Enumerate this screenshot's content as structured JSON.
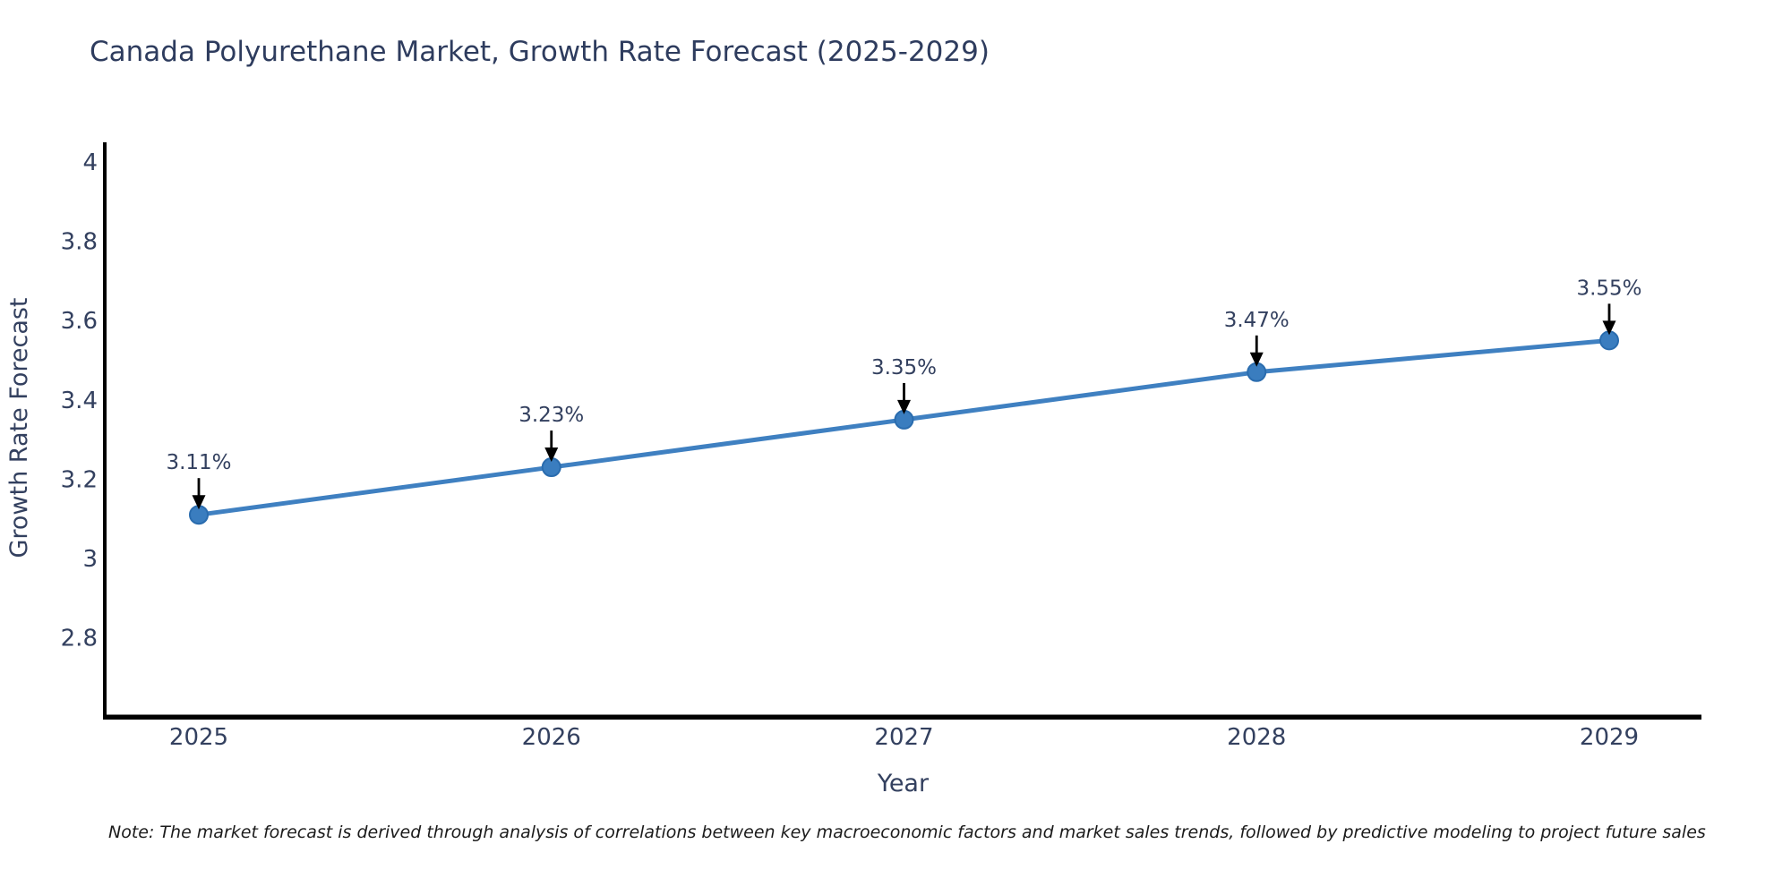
{
  "title": "Canada Polyurethane Market, Growth Rate Forecast (2025-2029)",
  "note": "Note: The market forecast is derived through analysis of correlations between key macroeconomic factors and market sales trends, followed by predictive modeling to project future sales",
  "chart_data": {
    "type": "line",
    "title": "Canada Polyurethane Market, Growth Rate Forecast (2025-2029)",
    "x": [
      2025,
      2026,
      2027,
      2028,
      2029
    ],
    "categories": [
      "2025",
      "2026",
      "2027",
      "2028",
      "2029"
    ],
    "values": [
      3.11,
      3.23,
      3.35,
      3.47,
      3.55
    ],
    "labels": [
      "3.11%",
      "3.23%",
      "3.35%",
      "3.47%",
      "3.55%"
    ],
    "xlabel": "Year",
    "ylabel": "Growth Rate Forecast",
    "yticks": [
      2.8,
      3.0,
      3.2,
      3.4,
      3.6,
      3.8,
      4.0
    ],
    "ytick_labels": [
      "2.8",
      "3",
      "3.2",
      "3.4",
      "3.6",
      "3.8",
      "4"
    ],
    "ylim": [
      2.6,
      4.05
    ],
    "grid": false,
    "legend": "none",
    "annotations": "value labels above each point with downward black arrows"
  },
  "colors": {
    "line": "#3f80c1",
    "marker_fill": "#3a7dbf",
    "marker_edge": "#2a6cae",
    "axis": "#000000",
    "chart_text": "#33405f",
    "title_text": "#2e3c5e",
    "note_text": "#1b1b1b",
    "arrow": "#000000",
    "background": "#ffffff"
  }
}
